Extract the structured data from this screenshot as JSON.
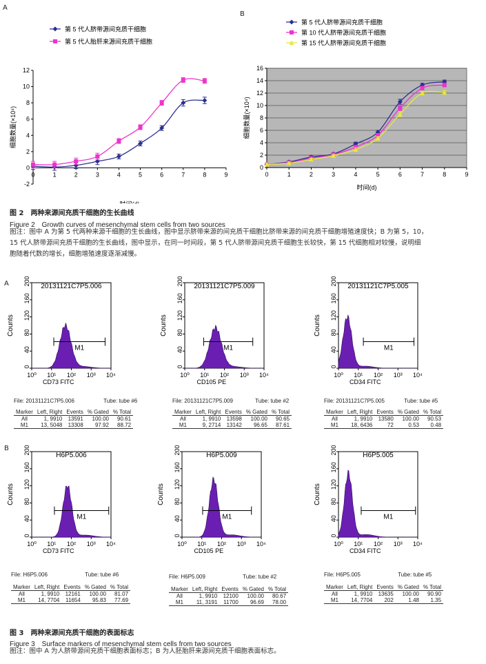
{
  "figure2": {
    "title": "图 2　两种来源间充质干细胞的生长曲线",
    "title_en": "Figure 2　Growth curves of mesenchymal stem cells from two sources",
    "note_line1": "图注：图中 A 为第 5 代两种来源干细胞的生长曲线，图中显示脐带来源的间充质干细胞比脐带来源的间充质干细胞增殖速度快；B 为第 5，10，",
    "note_line2": "15 代人脐带源间充质干细胞的生长曲线，图中显示，在同一时间段，第 5 代人脐带源间充质干细胞生长较快，第 15 代细胞相对较慢，说明细",
    "note_line3": "胞随着代数的增长，细胞增殖速度逐渐减慢。"
  },
  "figure3": {
    "title": "图 3　两种来源间充质干细胞的表面标志",
    "title_en": "Figure 3　Surface markers of mesenchymal stem cells from two sources",
    "note": "图注：图中 A 为人脐带源间充质干细胞表面标志；B 为人胚胎肝来源间充质干细胞表面标志。"
  },
  "panel_labels": {
    "fig2_a": "A",
    "fig2_b": "B",
    "fig3_a": "A",
    "fig3_b": "B"
  },
  "stats_headers": [
    "Marker",
    "Left, Right",
    "Events",
    "% Gated",
    "% Total"
  ],
  "chart_data": [
    {
      "type": "line",
      "panel": "A",
      "xlabel": "时间(d)",
      "ylabel": "细胞数量(×10⁴)",
      "x": [
        0,
        1,
        2,
        3,
        4,
        5,
        6,
        7,
        8
      ],
      "xlim": [
        0,
        9
      ],
      "ylim": [
        -2,
        12
      ],
      "xticks": [
        0,
        1,
        2,
        3,
        4,
        5,
        6,
        7,
        8,
        9
      ],
      "yticks": [
        -2,
        0,
        2,
        4,
        6,
        8,
        10,
        12
      ],
      "grid": false,
      "legend": "top-left",
      "series": [
        {
          "name": "第 5 代人脐带源间充质干细胞",
          "color": "#2b2f8f",
          "marker": "diamond",
          "values": [
            0.2,
            0.1,
            0.3,
            0.8,
            1.4,
            3.0,
            4.9,
            8.0,
            8.3
          ],
          "err": [
            0.4,
            0.4,
            0.4,
            0.4,
            0.3,
            0.3,
            0.3,
            0.4,
            0.4
          ]
        },
        {
          "name": "第 5 代人胎肝来源间充质干细胞",
          "color": "#ee33cc",
          "marker": "square",
          "values": [
            0.4,
            0.4,
            0.8,
            1.4,
            3.3,
            5.0,
            8.0,
            10.8,
            10.7
          ],
          "err": [
            0.4,
            0.4,
            0.4,
            0.4,
            0.3,
            0.3,
            0.3,
            0.3,
            0.3
          ]
        }
      ]
    },
    {
      "type": "line",
      "panel": "B",
      "xlabel": "时间(d)",
      "ylabel": "细胞数量(×10⁴)",
      "x": [
        0,
        1,
        2,
        3,
        4,
        5,
        6,
        7,
        8
      ],
      "xlim": [
        0,
        9
      ],
      "ylim": [
        0,
        16
      ],
      "xticks": [
        0,
        1,
        2,
        3,
        4,
        5,
        6,
        7,
        8,
        9
      ],
      "yticks": [
        0,
        2,
        4,
        6,
        8,
        10,
        12,
        14,
        16
      ],
      "grid": true,
      "background": "#b7b7b7",
      "legend": "top-left",
      "series": [
        {
          "name": "第 5 代人脐带源间充质干细胞",
          "color": "#2b2f8f",
          "marker": "diamond",
          "values": [
            0.5,
            0.9,
            1.7,
            2.2,
            3.8,
            5.7,
            10.6,
            13.3,
            13.8
          ],
          "err": [
            0.2,
            0.2,
            0.2,
            0.2,
            0.3,
            0.3,
            0.4,
            0.3,
            0.3
          ]
        },
        {
          "name": "第 10 代人脐带源间充质干细胞",
          "color": "#ee33cc",
          "marker": "square",
          "values": [
            0.5,
            0.8,
            1.5,
            2.1,
            3.3,
            5.2,
            9.6,
            12.8,
            13.3
          ],
          "err": [
            0.2,
            0.2,
            0.2,
            0.2,
            0.3,
            0.3,
            0.4,
            0.3,
            0.3
          ]
        },
        {
          "name": "第 15 代人脐带源间充质干细胞",
          "color": "#e8e83a",
          "marker": "triangle",
          "values": [
            0.5,
            0.7,
            1.3,
            1.9,
            2.9,
            4.7,
            8.6,
            12.0,
            12.1
          ],
          "err": [
            0.2,
            0.2,
            0.2,
            0.2,
            0.3,
            0.3,
            0.4,
            0.3,
            0.3
          ]
        }
      ]
    },
    {
      "type": "histogram",
      "id": "a1",
      "title": "20131121C7P5.006",
      "xlabel": "CD73 FITC",
      "ylabel": "Counts",
      "ylim": [
        0,
        200
      ],
      "yticks": [
        0,
        40,
        80,
        120,
        160,
        200
      ],
      "xlog": true,
      "xticks": [
        "10⁰",
        "10¹",
        "10²",
        "10³",
        "10⁴"
      ],
      "gate": "M1",
      "gate_range": [
        13,
        5048
      ],
      "peak_log": 1.7,
      "peak_height": 100,
      "width": 0.28
    },
    {
      "type": "histogram",
      "id": "a2",
      "title": "20131121C7P5.009",
      "xlabel": "CD105 PE",
      "ylabel": "Counts",
      "ylim": [
        0,
        200
      ],
      "yticks": [
        0,
        40,
        80,
        120,
        160,
        200
      ],
      "xlog": true,
      "xticks": [
        "10⁰",
        "10¹",
        "10²",
        "10³",
        "10⁴"
      ],
      "gate": "M1",
      "gate_range": [
        9,
        2714
      ],
      "peak_log": 1.55,
      "peak_height": 95,
      "width": 0.3
    },
    {
      "type": "histogram",
      "id": "a3",
      "title": "20131121C7P5.005",
      "xlabel": "CD34 FITC",
      "ylabel": "Counts",
      "ylim": [
        0,
        200
      ],
      "yticks": [
        0,
        40,
        80,
        120,
        160,
        200
      ],
      "xlog": true,
      "xticks": [
        "10⁰",
        "10¹",
        "10²",
        "10³",
        "10⁴"
      ],
      "gate": "M1",
      "gate_range": [
        18,
        6436
      ],
      "peak_log": 0.45,
      "peak_height": 120,
      "width": 0.22
    },
    {
      "type": "histogram",
      "id": "b1",
      "title": "H6P5.006",
      "xlabel": "CD73 FITC",
      "ylabel": "Counts",
      "ylim": [
        0,
        200
      ],
      "yticks": [
        0,
        40,
        80,
        120,
        160,
        200
      ],
      "xlog": true,
      "xticks": [
        "10⁰",
        "10¹",
        "10²",
        "10³",
        "10⁴"
      ],
      "gate": "M1",
      "gate_range": [
        14,
        7704
      ],
      "peak_log": 1.8,
      "peak_height": 120,
      "width": 0.22
    },
    {
      "type": "histogram",
      "id": "b2",
      "title": "H6P5.009",
      "xlabel": "CD105 PE",
      "ylabel": "Counts",
      "ylim": [
        0,
        200
      ],
      "yticks": [
        0,
        40,
        80,
        120,
        160,
        200
      ],
      "xlog": true,
      "xticks": [
        "10⁰",
        "10¹",
        "10²",
        "10³",
        "10⁴"
      ],
      "gate": "M1",
      "gate_range": [
        11,
        3191
      ],
      "peak_log": 1.6,
      "peak_height": 135,
      "width": 0.22
    },
    {
      "type": "histogram",
      "id": "b3",
      "title": "H6P5.005",
      "xlabel": "CD34 FITC",
      "ylabel": "Counts",
      "ylim": [
        0,
        200
      ],
      "yticks": [
        0,
        40,
        80,
        120,
        160,
        200
      ],
      "xlog": true,
      "xticks": [
        "10⁰",
        "10¹",
        "10²",
        "10³",
        "10⁴"
      ],
      "gate": "M1",
      "gate_range": [
        14,
        7704
      ],
      "peak_log": 0.5,
      "peak_height": 150,
      "width": 0.2
    }
  ],
  "stats": {
    "a1": {
      "file": "File: 20131121C7P5.006",
      "tube": "Tube: tube #6",
      "rows": [
        [
          "All",
          "1, 9910",
          "13591",
          "100.00",
          "90.61"
        ],
        [
          "M1",
          "13, 5048",
          "13308",
          "97.92",
          "88.72"
        ]
      ]
    },
    "a2": {
      "file": "File: 20131121C7P5.009",
      "tube": "Tube: tube #2",
      "rows": [
        [
          "All",
          "1, 9910",
          "13598",
          "100.00",
          "90.65"
        ],
        [
          "M1",
          "9, 2714",
          "13142",
          "96.65",
          "87.61"
        ]
      ]
    },
    "a3": {
      "file": "File: 20131121C7P5.005",
      "tube": "Tube: tube #5",
      "rows": [
        [
          "All",
          "1, 9910",
          "13580",
          "100.00",
          "90.53"
        ],
        [
          "M1",
          "18, 6436",
          "72",
          "0.53",
          "0.48"
        ]
      ]
    },
    "b1": {
      "file": "File: H6P5.006",
      "tube": "Tube: tube #6",
      "rows": [
        [
          "All",
          "1, 9910",
          "12161",
          "100.00",
          "81.07"
        ],
        [
          "M1",
          "14, 7704",
          "11654",
          "95.83",
          "77.69"
        ]
      ]
    },
    "b2": {
      "file": "File: H6P5.009",
      "tube": "Tube: tube #2",
      "rows": [
        [
          "All",
          "1, 9910",
          "12100",
          "100.00",
          "80.67"
        ],
        [
          "M1",
          "11, 3191",
          "11700",
          "96.69",
          "78.00"
        ]
      ]
    },
    "b3": {
      "file": "File: H6P5.005",
      "tube": "Tube: tube #5",
      "rows": [
        [
          "All",
          "1, 9910",
          "13635",
          "100.00",
          "90.90"
        ],
        [
          "M1",
          "14, 7704",
          "202",
          "1.48",
          "1.35"
        ]
      ]
    }
  }
}
